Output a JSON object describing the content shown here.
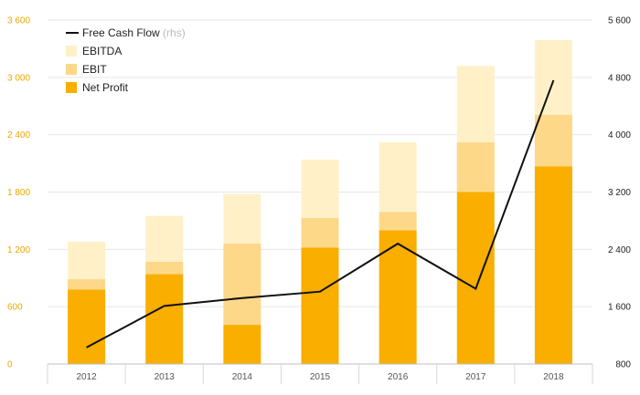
{
  "chart_data": {
    "type": "bar",
    "stacked": true,
    "categories": [
      "2012",
      "2013",
      "2014",
      "2015",
      "2016",
      "2017",
      "2018"
    ],
    "series": [
      {
        "name": "Net Profit",
        "color": "#f9ae00",
        "values": [
          780,
          940,
          410,
          1220,
          1400,
          1800,
          2070
        ]
      },
      {
        "name": "EBIT",
        "color": "#fdd888",
        "values": [
          110,
          130,
          850,
          310,
          190,
          520,
          540
        ]
      },
      {
        "name": "EBITDA",
        "color": "#fff0c8",
        "values": [
          390,
          480,
          520,
          610,
          730,
          800,
          780
        ]
      }
    ],
    "line_series": {
      "name": "Free Cash Flow",
      "rhs_label": "(rhs)",
      "color": "#111111",
      "values": [
        1030,
        1610,
        1720,
        1810,
        2480,
        1850,
        4760
      ]
    },
    "yleft": {
      "min": 0,
      "max": 3600,
      "ticks": [
        "0",
        "600",
        "1 200",
        "1 800",
        "2 400",
        "3 000",
        "3 600"
      ],
      "tick_values": [
        0,
        600,
        1200,
        1800,
        2400,
        3000,
        3600
      ],
      "color": "#e8a800"
    },
    "yright": {
      "min": 800,
      "max": 5600,
      "ticks": [
        "800",
        "1 600",
        "2 400",
        "3 200",
        "4 000",
        "4 800",
        "5 600"
      ],
      "tick_values": [
        800,
        1600,
        2400,
        3200,
        4000,
        4800,
        5600
      ]
    },
    "grid": true,
    "legend_position": "top-left"
  }
}
